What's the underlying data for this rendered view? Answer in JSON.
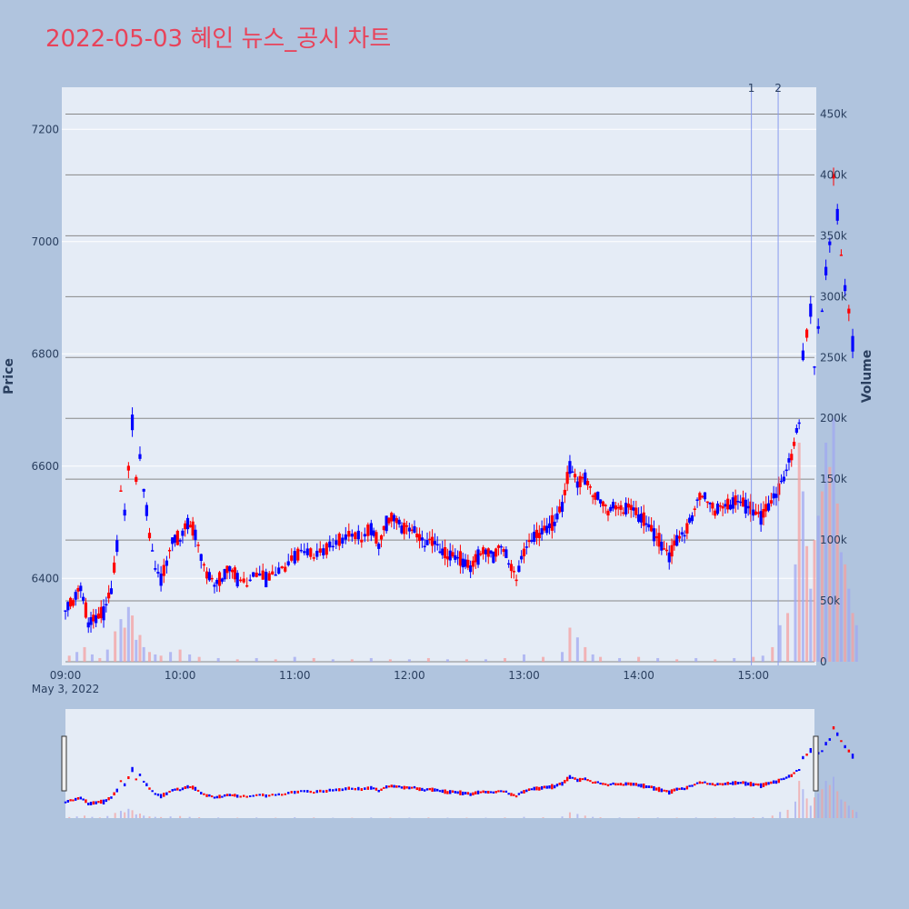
{
  "title": "2022-05-03 혜인 뉴스_공시 차트",
  "chart_data": {
    "type": "candlestick",
    "title": "2022-05-03 혜인 뉴스_공시 차트",
    "ylabel": "Price",
    "y2label": "Volume",
    "date_label": "May 3, 2022",
    "x_ticks": [
      "09:00",
      "10:00",
      "11:00",
      "12:00",
      "13:00",
      "14:00",
      "15:00"
    ],
    "y_ticks": [
      6400,
      6600,
      6800,
      7000,
      7200
    ],
    "y2_ticks": [
      "0",
      "50k",
      "100k",
      "150k",
      "200k",
      "250k",
      "300k",
      "350k",
      "400k",
      "450k"
    ],
    "y2_tick_values": [
      0,
      50000,
      100000,
      150000,
      200000,
      250000,
      300000,
      350000,
      400000,
      450000
    ],
    "price_range": [
      6245,
      7275
    ],
    "volume_range": [
      0,
      475000
    ],
    "time_range_min": [
      0,
      392
    ],
    "up_color": "#ff0000",
    "down_color": "#0000ff",
    "markers": [
      {
        "label": "1",
        "minute": 359
      },
      {
        "label": "2",
        "minute": 373
      }
    ],
    "price_path": [
      [
        0,
        6345
      ],
      [
        4,
        6360
      ],
      [
        8,
        6385
      ],
      [
        12,
        6320
      ],
      [
        16,
        6330
      ],
      [
        20,
        6340
      ],
      [
        24,
        6380
      ],
      [
        27,
        6460
      ],
      [
        29,
        6560
      ],
      [
        31,
        6520
      ],
      [
        33,
        6600
      ],
      [
        35,
        6680
      ],
      [
        37,
        6580
      ],
      [
        39,
        6620
      ],
      [
        41,
        6560
      ],
      [
        44,
        6480
      ],
      [
        47,
        6420
      ],
      [
        50,
        6400
      ],
      [
        53,
        6430
      ],
      [
        56,
        6470
      ],
      [
        60,
        6470
      ],
      [
        64,
        6500
      ],
      [
        68,
        6480
      ],
      [
        71,
        6440
      ],
      [
        74,
        6410
      ],
      [
        78,
        6390
      ],
      [
        82,
        6400
      ],
      [
        86,
        6420
      ],
      [
        90,
        6400
      ],
      [
        95,
        6390
      ],
      [
        100,
        6410
      ],
      [
        105,
        6400
      ],
      [
        110,
        6410
      ],
      [
        115,
        6420
      ],
      [
        120,
        6440
      ],
      [
        125,
        6450
      ],
      [
        130,
        6440
      ],
      [
        135,
        6450
      ],
      [
        140,
        6460
      ],
      [
        145,
        6470
      ],
      [
        150,
        6480
      ],
      [
        155,
        6470
      ],
      [
        160,
        6490
      ],
      [
        164,
        6460
      ],
      [
        168,
        6500
      ],
      [
        172,
        6510
      ],
      [
        176,
        6490
      ],
      [
        180,
        6490
      ],
      [
        184,
        6480
      ],
      [
        188,
        6460
      ],
      [
        192,
        6470
      ],
      [
        196,
        6450
      ],
      [
        200,
        6440
      ],
      [
        204,
        6440
      ],
      [
        208,
        6430
      ],
      [
        212,
        6420
      ],
      [
        216,
        6440
      ],
      [
        220,
        6450
      ],
      [
        224,
        6440
      ],
      [
        228,
        6460
      ],
      [
        232,
        6430
      ],
      [
        236,
        6400
      ],
      [
        240,
        6450
      ],
      [
        244,
        6470
      ],
      [
        248,
        6480
      ],
      [
        252,
        6490
      ],
      [
        256,
        6500
      ],
      [
        260,
        6530
      ],
      [
        264,
        6600
      ],
      [
        268,
        6570
      ],
      [
        272,
        6580
      ],
      [
        276,
        6550
      ],
      [
        280,
        6540
      ],
      [
        284,
        6520
      ],
      [
        288,
        6530
      ],
      [
        292,
        6520
      ],
      [
        296,
        6530
      ],
      [
        300,
        6510
      ],
      [
        304,
        6500
      ],
      [
        308,
        6480
      ],
      [
        312,
        6460
      ],
      [
        316,
        6440
      ],
      [
        320,
        6470
      ],
      [
        324,
        6480
      ],
      [
        328,
        6510
      ],
      [
        332,
        6550
      ],
      [
        336,
        6540
      ],
      [
        340,
        6520
      ],
      [
        344,
        6530
      ],
      [
        348,
        6530
      ],
      [
        352,
        6540
      ],
      [
        356,
        6530
      ],
      [
        360,
        6520
      ],
      [
        364,
        6510
      ],
      [
        368,
        6530
      ],
      [
        372,
        6550
      ],
      [
        376,
        6580
      ],
      [
        380,
        6620
      ],
      [
        384,
        6680
      ],
      [
        386,
        6800
      ],
      [
        388,
        6840
      ],
      [
        390,
        6880
      ],
      [
        392,
        6780
      ],
      [
        394,
        6850
      ],
      [
        396,
        6880
      ],
      [
        398,
        6950
      ],
      [
        400,
        7000
      ],
      [
        402,
        7120
      ],
      [
        404,
        7050
      ],
      [
        406,
        6980
      ],
      [
        408,
        6920
      ],
      [
        410,
        6880
      ],
      [
        412,
        6820
      ],
      [
        414,
        6780
      ]
    ],
    "volume_bars": [
      [
        2,
        5000
      ],
      [
        6,
        8000
      ],
      [
        10,
        12000
      ],
      [
        14,
        6000
      ],
      [
        18,
        3000
      ],
      [
        22,
        10000
      ],
      [
        26,
        25000
      ],
      [
        29,
        35000
      ],
      [
        31,
        28000
      ],
      [
        33,
        45000
      ],
      [
        35,
        38000
      ],
      [
        37,
        18000
      ],
      [
        39,
        22000
      ],
      [
        41,
        12000
      ],
      [
        44,
        8000
      ],
      [
        47,
        6000
      ],
      [
        50,
        5000
      ],
      [
        55,
        8000
      ],
      [
        60,
        10000
      ],
      [
        65,
        6000
      ],
      [
        70,
        4000
      ],
      [
        80,
        3000
      ],
      [
        90,
        2000
      ],
      [
        100,
        3000
      ],
      [
        110,
        2000
      ],
      [
        120,
        4000
      ],
      [
        130,
        3000
      ],
      [
        140,
        2000
      ],
      [
        150,
        2000
      ],
      [
        160,
        3000
      ],
      [
        170,
        2000
      ],
      [
        180,
        2000
      ],
      [
        190,
        3000
      ],
      [
        200,
        2000
      ],
      [
        210,
        2000
      ],
      [
        220,
        2000
      ],
      [
        230,
        3000
      ],
      [
        240,
        6000
      ],
      [
        250,
        4000
      ],
      [
        260,
        8000
      ],
      [
        264,
        28000
      ],
      [
        268,
        20000
      ],
      [
        272,
        12000
      ],
      [
        276,
        6000
      ],
      [
        280,
        4000
      ],
      [
        290,
        3000
      ],
      [
        300,
        4000
      ],
      [
        310,
        3000
      ],
      [
        320,
        2000
      ],
      [
        330,
        3000
      ],
      [
        340,
        2000
      ],
      [
        350,
        3000
      ],
      [
        360,
        4000
      ],
      [
        365,
        5000
      ],
      [
        370,
        12000
      ],
      [
        374,
        30000
      ],
      [
        378,
        40000
      ],
      [
        382,
        80000
      ],
      [
        384,
        180000
      ],
      [
        386,
        140000
      ],
      [
        388,
        95000
      ],
      [
        390,
        60000
      ],
      [
        392,
        100000
      ],
      [
        394,
        120000
      ],
      [
        396,
        140000
      ],
      [
        398,
        180000
      ],
      [
        400,
        160000
      ],
      [
        402,
        200000
      ],
      [
        404,
        130000
      ],
      [
        406,
        90000
      ],
      [
        408,
        80000
      ],
      [
        410,
        60000
      ],
      [
        412,
        40000
      ],
      [
        414,
        30000
      ]
    ],
    "legend": "none",
    "grid": true
  }
}
